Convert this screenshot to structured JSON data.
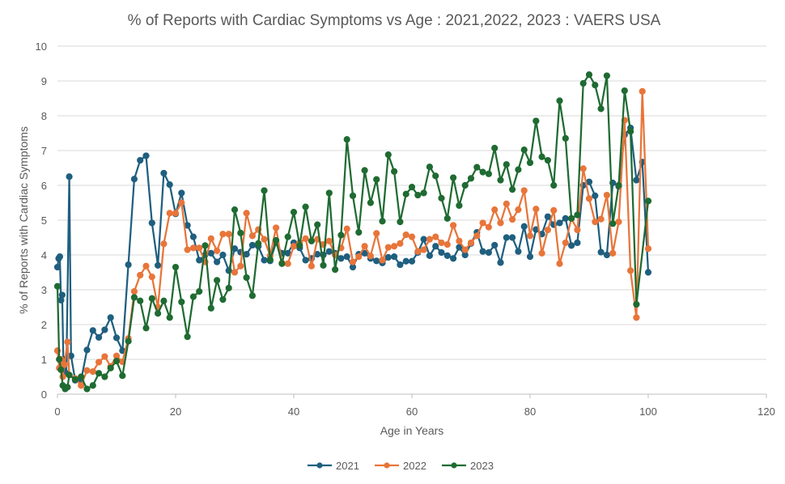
{
  "chart_data": {
    "type": "line",
    "title": "% of Reports with Cardiac Symptoms vs Age : 2021,2022, 2023 : VAERS USA",
    "xlabel": "Age in Years",
    "ylabel": "% of Reports with Cardiac Symptoms",
    "xlim": [
      0,
      120
    ],
    "ylim": [
      0,
      10
    ],
    "xticks": [
      0,
      20,
      40,
      60,
      80,
      100,
      120
    ],
    "yticks": [
      0,
      1,
      2,
      3,
      4,
      5,
      6,
      7,
      8,
      9,
      10
    ],
    "grid": "horizontal",
    "legend": "bottom",
    "series": [
      {
        "name": "2021",
        "color": "#1f5f7f",
        "points": [
          [
            0,
            3.65
          ],
          [
            0.2,
            3.9
          ],
          [
            0.4,
            3.95
          ],
          [
            0.6,
            2.7
          ],
          [
            0.8,
            2.85
          ],
          [
            1,
            1.0
          ],
          [
            1.5,
            0.6
          ],
          [
            2,
            6.25
          ],
          [
            2.3,
            1.1
          ],
          [
            3,
            0.4
          ],
          [
            4,
            0.4
          ],
          [
            5,
            1.27
          ],
          [
            6,
            1.83
          ],
          [
            7,
            1.63
          ],
          [
            8,
            1.85
          ],
          [
            9,
            2.2
          ],
          [
            10,
            1.62
          ],
          [
            11,
            1.25
          ],
          [
            12,
            3.72
          ],
          [
            13,
            6.18
          ],
          [
            14,
            6.72
          ],
          [
            15,
            6.85
          ],
          [
            16,
            4.92
          ],
          [
            17,
            3.7
          ],
          [
            18,
            6.35
          ],
          [
            19,
            6.02
          ],
          [
            20,
            5.18
          ],
          [
            21,
            5.78
          ],
          [
            22,
            4.85
          ],
          [
            23,
            4.52
          ],
          [
            24,
            3.85
          ],
          [
            25,
            4.0
          ],
          [
            26,
            4.05
          ],
          [
            27,
            3.8
          ],
          [
            28,
            4.0
          ],
          [
            29,
            3.55
          ],
          [
            30,
            4.18
          ],
          [
            31,
            4.08
          ],
          [
            32,
            4.02
          ],
          [
            33,
            4.28
          ],
          [
            34,
            4.25
          ],
          [
            35,
            3.85
          ],
          [
            36,
            3.83
          ],
          [
            37,
            4.35
          ],
          [
            38,
            4.05
          ],
          [
            39,
            4.05
          ],
          [
            40,
            4.35
          ],
          [
            41,
            4.2
          ],
          [
            42,
            3.85
          ],
          [
            43,
            3.9
          ],
          [
            44,
            4.02
          ],
          [
            45,
            4.0
          ],
          [
            46,
            4.1
          ],
          [
            47,
            4.05
          ],
          [
            48,
            3.9
          ],
          [
            49,
            3.95
          ],
          [
            50,
            3.65
          ],
          [
            51,
            4.02
          ],
          [
            52,
            4.05
          ],
          [
            53,
            3.9
          ],
          [
            54,
            3.83
          ],
          [
            55,
            3.77
          ],
          [
            56,
            3.93
          ],
          [
            57,
            3.95
          ],
          [
            58,
            3.72
          ],
          [
            59,
            3.82
          ],
          [
            60,
            3.82
          ],
          [
            61,
            4.07
          ],
          [
            62,
            4.45
          ],
          [
            63,
            3.98
          ],
          [
            64,
            4.25
          ],
          [
            65,
            4.07
          ],
          [
            66,
            3.98
          ],
          [
            67,
            3.9
          ],
          [
            68,
            4.22
          ],
          [
            69,
            4.0
          ],
          [
            70,
            4.33
          ],
          [
            71,
            4.65
          ],
          [
            72,
            4.1
          ],
          [
            73,
            4.07
          ],
          [
            74,
            4.28
          ],
          [
            75,
            3.78
          ],
          [
            76,
            4.5
          ],
          [
            77,
            4.5
          ],
          [
            78,
            4.1
          ],
          [
            79,
            4.82
          ],
          [
            80,
            3.95
          ],
          [
            81,
            4.73
          ],
          [
            82,
            4.6
          ],
          [
            83,
            5.1
          ],
          [
            84,
            4.87
          ],
          [
            85,
            4.92
          ],
          [
            86,
            5.05
          ],
          [
            87,
            4.27
          ],
          [
            88,
            4.35
          ],
          [
            89,
            6.0
          ],
          [
            90,
            6.1
          ],
          [
            91,
            5.7
          ],
          [
            92,
            4.08
          ],
          [
            93,
            4.0
          ],
          [
            94,
            6.07
          ],
          [
            95,
            5.97
          ],
          [
            96,
            7.45
          ],
          [
            97,
            7.65
          ],
          [
            98,
            6.15
          ],
          [
            99,
            6.67
          ],
          [
            100,
            3.5
          ]
        ]
      },
      {
        "name": "2022",
        "color": "#e8753a",
        "points": [
          [
            0,
            1.25
          ],
          [
            0.3,
            0.75
          ],
          [
            0.6,
            1.0
          ],
          [
            0.9,
            0.5
          ],
          [
            1.2,
            0.85
          ],
          [
            1.7,
            1.5
          ],
          [
            2,
            0.55
          ],
          [
            3,
            0.45
          ],
          [
            4,
            0.25
          ],
          [
            5,
            0.68
          ],
          [
            6,
            0.65
          ],
          [
            7,
            0.92
          ],
          [
            8,
            1.08
          ],
          [
            9,
            0.8
          ],
          [
            10,
            1.1
          ],
          [
            11,
            0.93
          ],
          [
            12,
            1.6
          ],
          [
            13,
            2.95
          ],
          [
            14,
            3.42
          ],
          [
            15,
            3.68
          ],
          [
            16,
            3.37
          ],
          [
            17,
            2.5
          ],
          [
            18,
            4.32
          ],
          [
            19,
            5.2
          ],
          [
            20,
            5.2
          ],
          [
            21,
            5.5
          ],
          [
            22,
            4.15
          ],
          [
            23,
            4.2
          ],
          [
            24,
            4.2
          ],
          [
            25,
            3.8
          ],
          [
            26,
            4.47
          ],
          [
            27,
            4.12
          ],
          [
            28,
            4.6
          ],
          [
            29,
            4.6
          ],
          [
            30,
            3.5
          ],
          [
            31,
            3.68
          ],
          [
            32,
            5.2
          ],
          [
            33,
            4.55
          ],
          [
            34,
            4.73
          ],
          [
            35,
            4.45
          ],
          [
            36,
            3.98
          ],
          [
            37,
            4.78
          ],
          [
            38,
            3.77
          ],
          [
            39,
            3.75
          ],
          [
            40,
            4.25
          ],
          [
            41,
            4.35
          ],
          [
            42,
            4.47
          ],
          [
            43,
            3.68
          ],
          [
            44,
            4.45
          ],
          [
            45,
            4.3
          ],
          [
            46,
            4.4
          ],
          [
            47,
            4.0
          ],
          [
            48,
            4.2
          ],
          [
            49,
            4.75
          ],
          [
            50,
            3.8
          ],
          [
            51,
            3.95
          ],
          [
            52,
            4.25
          ],
          [
            53,
            3.97
          ],
          [
            54,
            4.62
          ],
          [
            55,
            3.85
          ],
          [
            56,
            4.22
          ],
          [
            57,
            4.25
          ],
          [
            58,
            4.33
          ],
          [
            59,
            4.58
          ],
          [
            60,
            4.52
          ],
          [
            61,
            4.1
          ],
          [
            62,
            4.15
          ],
          [
            63,
            4.45
          ],
          [
            64,
            4.52
          ],
          [
            65,
            4.35
          ],
          [
            66,
            4.3
          ],
          [
            67,
            4.85
          ],
          [
            68,
            4.4
          ],
          [
            69,
            4.15
          ],
          [
            70,
            4.35
          ],
          [
            71,
            4.55
          ],
          [
            72,
            4.92
          ],
          [
            73,
            4.8
          ],
          [
            74,
            5.3
          ],
          [
            75,
            4.92
          ],
          [
            76,
            5.47
          ],
          [
            77,
            5.02
          ],
          [
            78,
            5.3
          ],
          [
            79,
            5.85
          ],
          [
            80,
            4.55
          ],
          [
            81,
            5.32
          ],
          [
            82,
            4.05
          ],
          [
            83,
            4.72
          ],
          [
            84,
            5.28
          ],
          [
            85,
            3.75
          ],
          [
            86,
            4.35
          ],
          [
            87,
            5.05
          ],
          [
            88,
            4.72
          ],
          [
            89,
            6.48
          ],
          [
            90,
            5.62
          ],
          [
            91,
            4.95
          ],
          [
            92,
            5.03
          ],
          [
            93,
            5.72
          ],
          [
            94,
            4.05
          ],
          [
            95,
            4.95
          ],
          [
            96,
            7.87
          ],
          [
            97,
            3.55
          ],
          [
            98,
            2.2
          ],
          [
            99,
            8.7
          ],
          [
            100,
            4.18
          ]
        ]
      },
      {
        "name": "2023",
        "color": "#1f6b32",
        "points": [
          [
            0,
            3.1
          ],
          [
            0.3,
            1.0
          ],
          [
            0.6,
            0.7
          ],
          [
            0.9,
            0.25
          ],
          [
            1.3,
            0.15
          ],
          [
            1.7,
            0.2
          ],
          [
            2,
            0.55
          ],
          [
            3,
            0.42
          ],
          [
            4,
            0.5
          ],
          [
            5,
            0.15
          ],
          [
            6,
            0.25
          ],
          [
            7,
            0.6
          ],
          [
            8,
            0.5
          ],
          [
            9,
            0.75
          ],
          [
            10,
            0.95
          ],
          [
            11,
            0.53
          ],
          [
            12,
            1.52
          ],
          [
            13,
            2.78
          ],
          [
            14,
            2.68
          ],
          [
            15,
            1.9
          ],
          [
            16,
            2.75
          ],
          [
            17,
            2.32
          ],
          [
            18,
            2.68
          ],
          [
            19,
            2.2
          ],
          [
            20,
            3.65
          ],
          [
            21,
            2.65
          ],
          [
            22,
            1.65
          ],
          [
            23,
            2.8
          ],
          [
            24,
            2.95
          ],
          [
            25,
            4.27
          ],
          [
            26,
            2.47
          ],
          [
            27,
            3.27
          ],
          [
            28,
            2.72
          ],
          [
            29,
            3.05
          ],
          [
            30,
            5.3
          ],
          [
            31,
            4.63
          ],
          [
            32,
            3.35
          ],
          [
            33,
            2.83
          ],
          [
            34,
            4.33
          ],
          [
            35,
            5.85
          ],
          [
            36,
            3.87
          ],
          [
            37,
            4.42
          ],
          [
            38,
            3.75
          ],
          [
            39,
            4.52
          ],
          [
            40,
            5.23
          ],
          [
            41,
            4.27
          ],
          [
            42,
            5.38
          ],
          [
            43,
            4.4
          ],
          [
            44,
            4.87
          ],
          [
            45,
            3.7
          ],
          [
            46,
            5.78
          ],
          [
            47,
            3.58
          ],
          [
            48,
            4.57
          ],
          [
            49,
            7.32
          ],
          [
            50,
            5.7
          ],
          [
            51,
            4.65
          ],
          [
            52,
            6.43
          ],
          [
            53,
            5.5
          ],
          [
            54,
            6.17
          ],
          [
            55,
            4.97
          ],
          [
            56,
            6.88
          ],
          [
            57,
            6.4
          ],
          [
            58,
            4.95
          ],
          [
            59,
            5.75
          ],
          [
            60,
            5.95
          ],
          [
            61,
            5.72
          ],
          [
            62,
            5.78
          ],
          [
            63,
            6.53
          ],
          [
            64,
            6.27
          ],
          [
            65,
            5.63
          ],
          [
            66,
            5.05
          ],
          [
            67,
            6.22
          ],
          [
            68,
            5.42
          ],
          [
            69,
            6.0
          ],
          [
            70,
            6.2
          ],
          [
            71,
            6.52
          ],
          [
            72,
            6.38
          ],
          [
            73,
            6.33
          ],
          [
            74,
            7.07
          ],
          [
            75,
            6.15
          ],
          [
            76,
            6.6
          ],
          [
            77,
            5.88
          ],
          [
            78,
            6.45
          ],
          [
            79,
            7.02
          ],
          [
            80,
            6.65
          ],
          [
            81,
            7.85
          ],
          [
            82,
            6.82
          ],
          [
            83,
            6.72
          ],
          [
            84,
            6.0
          ],
          [
            85,
            8.43
          ],
          [
            86,
            7.35
          ],
          [
            87,
            5.05
          ],
          [
            88,
            5.15
          ],
          [
            89,
            8.93
          ],
          [
            90,
            9.18
          ],
          [
            91,
            8.88
          ],
          [
            92,
            8.2
          ],
          [
            93,
            9.15
          ],
          [
            94,
            4.9
          ],
          [
            95,
            6.0
          ],
          [
            96,
            8.72
          ],
          [
            97,
            7.55
          ],
          [
            98,
            2.58
          ],
          [
            100,
            5.55
          ]
        ]
      }
    ]
  }
}
